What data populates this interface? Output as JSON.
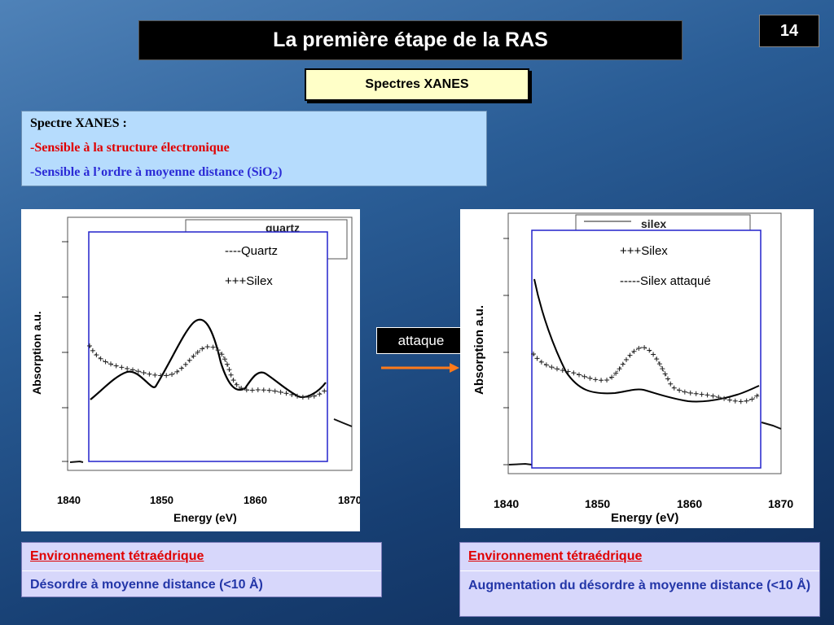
{
  "title": "La première étape de la RAS",
  "page_number": "14",
  "subtitle": "Spectres XANES",
  "info": {
    "heading": "Spectre XANES :",
    "line1": "-Sensible à la structure électronique",
    "line2_main": "-Sensible à l’ordre à moyenne distance (SiO",
    "line2_sub": "2",
    "line2_end": ")",
    "line1_color": "#e00000",
    "line2_color": "#2b2bd6"
  },
  "arrow_label": "attaque",
  "left_chart": {
    "legend_line1": "----Quartz",
    "legend_line2": "+++Silex",
    "legend_back": "quartz",
    "xlabel": "Energy (eV)",
    "ylabel": "Absorption a.u.",
    "xticks": [
      "1840",
      "1850",
      "1860",
      "1870"
    ]
  },
  "right_chart": {
    "legend_line1": "+++Silex",
    "legend_line2": "-----Silex attaqué",
    "legend_back": "silex",
    "xlabel": "Energy (eV)",
    "ylabel": "Absorption a.u.",
    "xticks": [
      "1840",
      "1850",
      "1860",
      "1870"
    ]
  },
  "left_result": {
    "line1": "Environnement tétraédrique",
    "line2": "Désordre à moyenne distance (<10 Å)"
  },
  "right_result": {
    "line1": "Environnement tétraédrique",
    "line2": "Augmentation du désordre à moyenne distance (<10 Å)"
  },
  "chart_data": [
    {
      "type": "line",
      "xlabel": "Energy (eV)",
      "ylabel": "Absorption a.u.",
      "xlim": [
        1840,
        1870
      ],
      "series": [
        {
          "name": "Quartz",
          "x": [
            1842,
            1844,
            1846,
            1848,
            1850,
            1852,
            1854,
            1855,
            1856,
            1858,
            1860,
            1861,
            1863,
            1865,
            1867
          ],
          "y": [
            0.3,
            0.4,
            0.5,
            0.45,
            0.38,
            0.65,
            0.95,
            0.9,
            0.6,
            0.33,
            0.52,
            0.48,
            0.33,
            0.28,
            0.38
          ]
        },
        {
          "name": "Silex",
          "x": [
            1842,
            1843,
            1845,
            1847,
            1849,
            1851,
            1853,
            1854,
            1856,
            1858,
            1860,
            1862,
            1864,
            1866,
            1867
          ],
          "y": [
            0.75,
            0.6,
            0.58,
            0.53,
            0.47,
            0.55,
            0.68,
            0.72,
            0.65,
            0.42,
            0.38,
            0.37,
            0.29,
            0.28,
            0.32
          ]
        }
      ]
    },
    {
      "type": "line",
      "xlabel": "Energy (eV)",
      "ylabel": "Absorption a.u.",
      "xlim": [
        1840,
        1870
      ],
      "series": [
        {
          "name": "Silex",
          "x": [
            1843,
            1844,
            1846,
            1848,
            1850,
            1852,
            1854,
            1855,
            1856,
            1858,
            1860,
            1862,
            1864,
            1866,
            1867.5
          ],
          "y": [
            0.6,
            0.55,
            0.52,
            0.48,
            0.42,
            0.5,
            0.68,
            0.7,
            0.64,
            0.44,
            0.36,
            0.35,
            0.3,
            0.3,
            0.34
          ]
        },
        {
          "name": "Silex attaqué",
          "x": [
            1843,
            1844,
            1846,
            1848,
            1849,
            1851,
            1853,
            1855,
            1857,
            1859,
            1861,
            1863,
            1865,
            1867.5
          ],
          "y": [
            1.05,
            0.82,
            0.58,
            0.44,
            0.38,
            0.38,
            0.4,
            0.42,
            0.38,
            0.33,
            0.3,
            0.32,
            0.34,
            0.42
          ]
        }
      ]
    }
  ]
}
